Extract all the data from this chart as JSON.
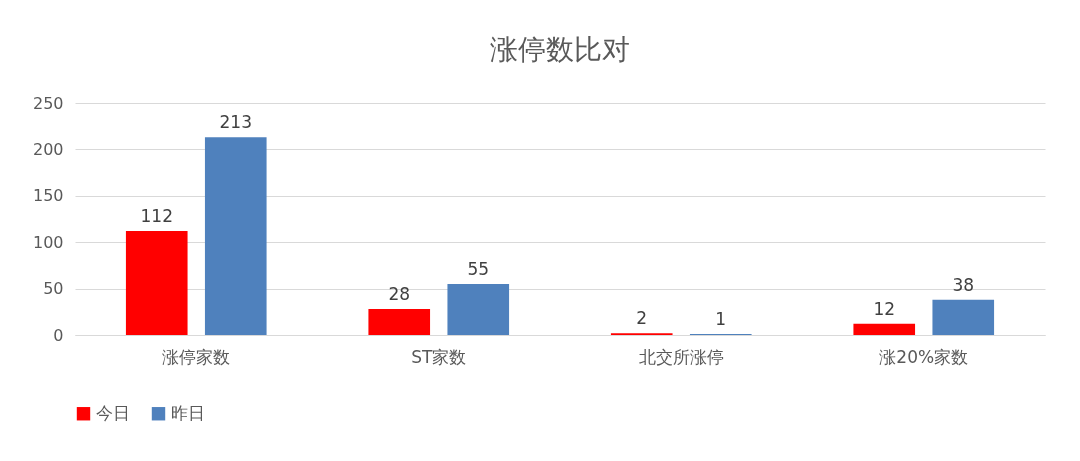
{
  "chart_data": {
    "type": "bar",
    "title": "涨停数比对",
    "categories": [
      "涨停家数",
      "ST家数",
      "北交所涨停",
      "涨20%家数"
    ],
    "series": [
      {
        "name": "今日",
        "color": "#ff0000",
        "values": [
          112,
          28,
          2,
          12
        ]
      },
      {
        "name": "昨日",
        "color": "#4f81bd",
        "values": [
          213,
          55,
          1,
          38
        ]
      }
    ],
    "ylim": [
      0,
      250
    ],
    "yticks": [
      0,
      50,
      100,
      150,
      200,
      250
    ],
    "grid": "y",
    "legend": "bottom",
    "data_labels": true
  }
}
